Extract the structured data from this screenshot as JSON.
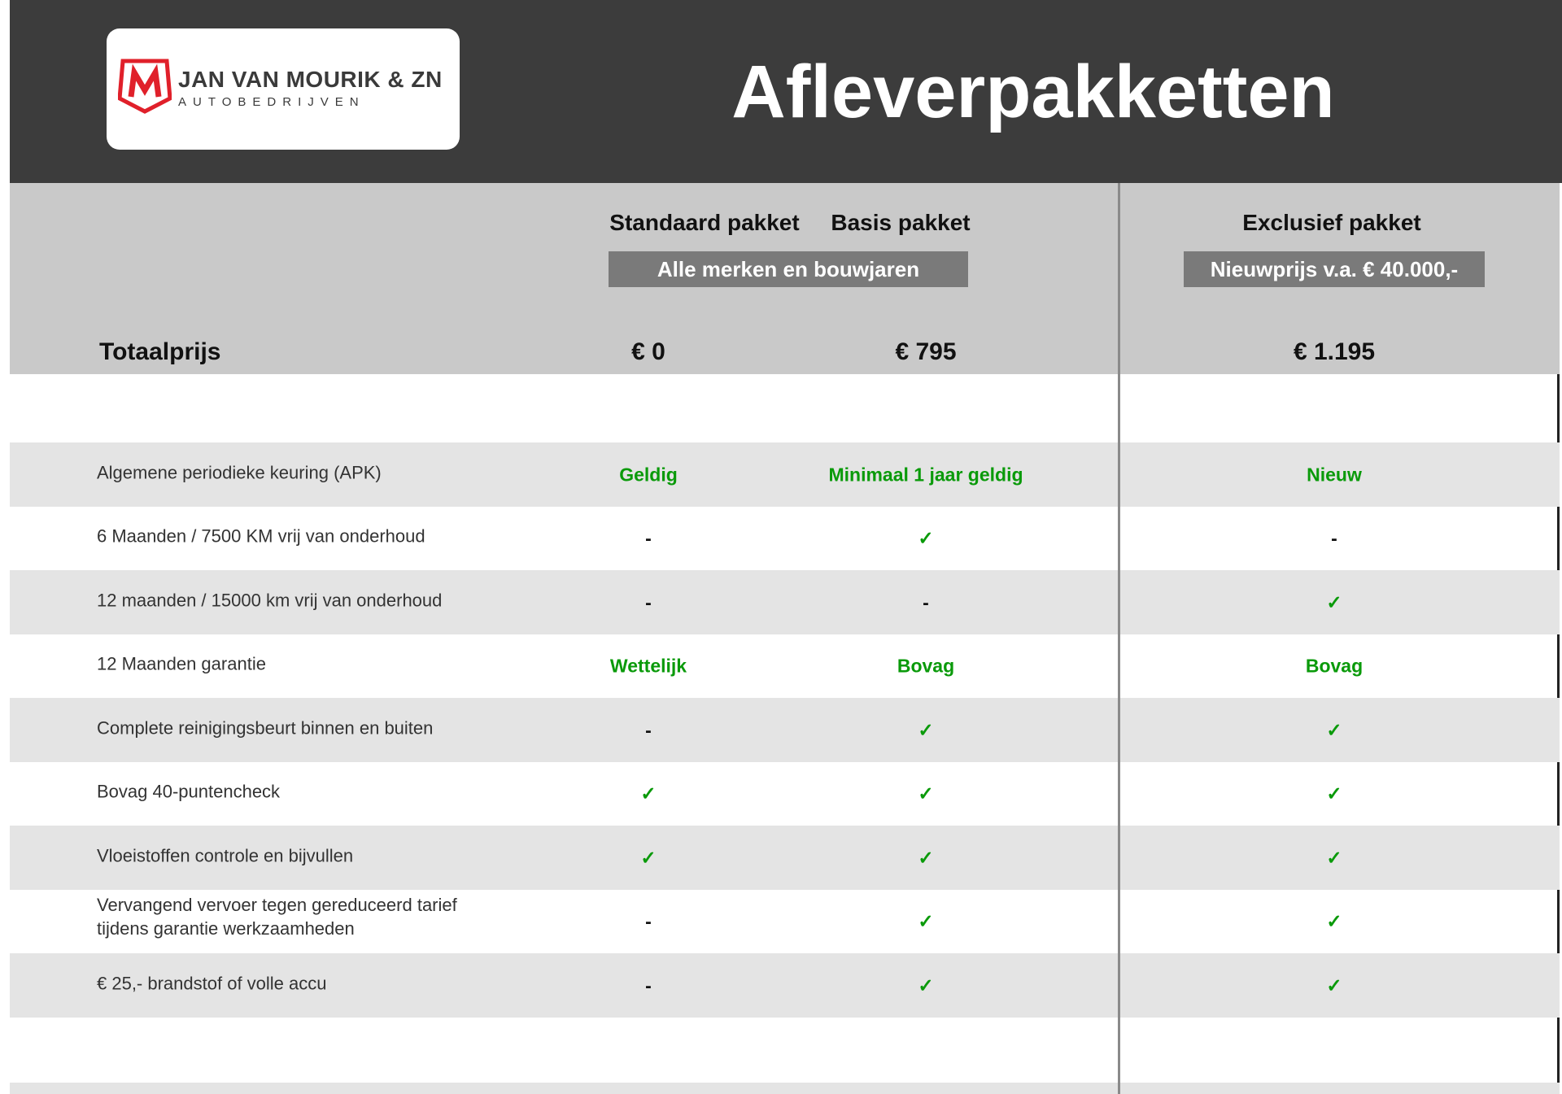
{
  "header": {
    "logo_name": "JAN VAN MOURIK & ZN",
    "logo_sub": "AUTOBEDRIJVEN",
    "title": "Afleverpakketten"
  },
  "columns": [
    {
      "name": "Standaard pakket",
      "price": "€ 0"
    },
    {
      "name": "Basis pakket",
      "price": "€ 795"
    },
    {
      "name": "Exclusief pakket",
      "price": "€ 1.195"
    }
  ],
  "badges": {
    "standard_basis": "Alle merken en bouwjaren",
    "exclusive": "Nieuwprijs v.a. € 40.000,-"
  },
  "total_label": "Totaalprijs",
  "colors": {
    "header": "#3c3c3c",
    "green": "#0a9a0a",
    "logo_red": "#e0202a"
  },
  "rows": [
    {
      "label": "Algemene periodieke keuring (APK)",
      "values": [
        "Geldig",
        "Minimaal 1 jaar geldig",
        "Nieuw"
      ]
    },
    {
      "label": "6 Maanden / 7500 KM vrij van onderhoud",
      "values": [
        "-",
        "✓",
        "-"
      ]
    },
    {
      "label": "12 maanden / 15000 km vrij van onderhoud",
      "values": [
        "-",
        "-",
        "✓"
      ]
    },
    {
      "label": "12 Maanden  garantie",
      "values": [
        "Wettelijk",
        "Bovag",
        "Bovag"
      ]
    },
    {
      "label": "Complete reinigingsbeurt binnen en buiten",
      "values": [
        "-",
        "✓",
        "✓"
      ]
    },
    {
      "label": "Bovag 40-puntencheck",
      "values": [
        "✓",
        "✓",
        "✓"
      ]
    },
    {
      "label": "Vloeistoffen controle en bijvullen",
      "values": [
        "✓",
        "✓",
        "✓"
      ]
    },
    {
      "label": "Vervangend vervoer tegen gereduceerd tarief tijdens garantie werkzaamheden",
      "values": [
        "-",
        "✓",
        "✓"
      ]
    },
    {
      "label": "€ 25,- brandstof of  volle accu",
      "values": [
        "-",
        "✓",
        "✓"
      ]
    }
  ]
}
